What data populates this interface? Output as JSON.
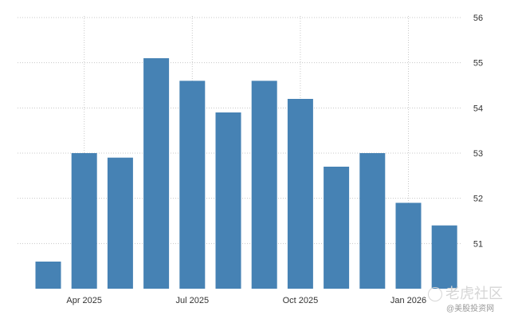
{
  "chart_data": {
    "type": "bar",
    "title": "",
    "xlabel": "",
    "ylabel": "",
    "categories": [
      "2025-03",
      "2025-04",
      "2025-05",
      "2025-06",
      "2025-07",
      "2025-08",
      "2025-09",
      "2025-10",
      "2025-11",
      "2025-12",
      "2026-01",
      "2026-02"
    ],
    "values": [
      50.6,
      53.0,
      52.9,
      55.1,
      54.6,
      53.9,
      54.6,
      54.2,
      52.7,
      53.0,
      51.9,
      51.4
    ],
    "x_tick_labels": [
      {
        "category": "2025-04",
        "label": "Apr 2025"
      },
      {
        "category": "2025-07",
        "label": "Jul 2025"
      },
      {
        "category": "2025-10",
        "label": "Oct 2025"
      },
      {
        "category": "2026-01",
        "label": "Jan 2026"
      }
    ],
    "y_ticks": [
      51,
      52,
      53,
      54,
      55,
      56
    ],
    "ylim": [
      50,
      56
    ],
    "y_axis_side": "right",
    "grid": true,
    "bar_color": "#4682b4",
    "grid_color": "#c8c8c8"
  },
  "watermark": {
    "main": "老虎社区",
    "sub": "@美股投资网"
  }
}
